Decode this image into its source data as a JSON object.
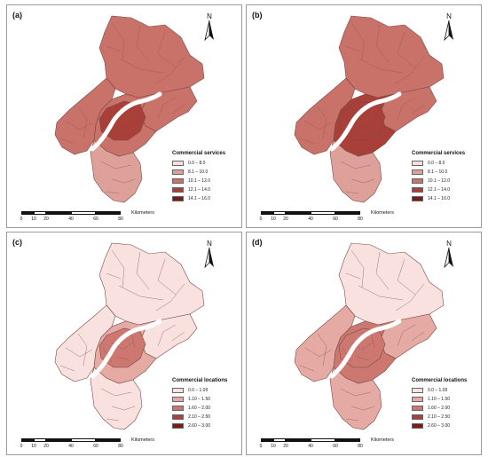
{
  "panels": [
    {
      "id": "a",
      "label": "(a)",
      "legend_title": "Commercial services",
      "legend": [
        "0.0 – 8.0",
        "8.1 – 10.0",
        "10.1 – 12.0",
        "12.1 – 14.0",
        "14.1 – 16.0"
      ],
      "scheme": [
        "#f8e1df",
        "#dea19a",
        "#c9726a",
        "#a83f38",
        "#7e1a16"
      ],
      "fills": {
        "north": 2,
        "west": 2,
        "core": 3,
        "inner": 2,
        "south": 1,
        "east": 2
      }
    },
    {
      "id": "b",
      "label": "(b)",
      "legend_title": "Commercial services",
      "legend": [
        "0.0 – 8.0",
        "8.1 – 10.0",
        "10.1 – 12.0",
        "12.1 – 14.0",
        "14.1 – 16.0"
      ],
      "scheme": [
        "#f8e1df",
        "#dea19a",
        "#c9726a",
        "#a83f38",
        "#7e1a16"
      ],
      "fills": {
        "north": 2,
        "west": 2,
        "core": 3,
        "inner": 3,
        "south": 1,
        "east": 2
      }
    },
    {
      "id": "c",
      "label": "(c)",
      "legend_title": "Commercial locations",
      "legend": [
        "0.0 – 1.09",
        "1.10 – 1.50",
        "1.60 – 2.00",
        "2.10 – 2.50",
        "2.60 – 3.00"
      ],
      "scheme": [
        "#f8e1df",
        "#e4aaa3",
        "#cc7870",
        "#a8413a",
        "#7e1a16"
      ],
      "fills": {
        "north": 0,
        "west": 0,
        "core": 2,
        "inner": 1,
        "south": 0,
        "east": 0
      }
    },
    {
      "id": "d",
      "label": "(d)",
      "legend_title": "Commercial locations",
      "legend": [
        "0.0 – 1.09",
        "1.10 – 1.50",
        "1.60 – 2.00",
        "2.10 – 2.50",
        "2.60 – 3.00"
      ],
      "scheme": [
        "#f8e1df",
        "#e4aaa3",
        "#cc7870",
        "#a8413a",
        "#7e1a16"
      ],
      "fills": {
        "north": 0,
        "west": 1,
        "core": 2,
        "inner": 2,
        "south": 1,
        "east": 1
      }
    }
  ],
  "north_label": "N",
  "scale": {
    "ticks": [
      "0",
      "10",
      "20",
      "40",
      "60",
      "80"
    ],
    "ticks_km": [
      0,
      10,
      20,
      40,
      60,
      80
    ],
    "unit": "Kilometers"
  },
  "river_color": "#ffffff"
}
